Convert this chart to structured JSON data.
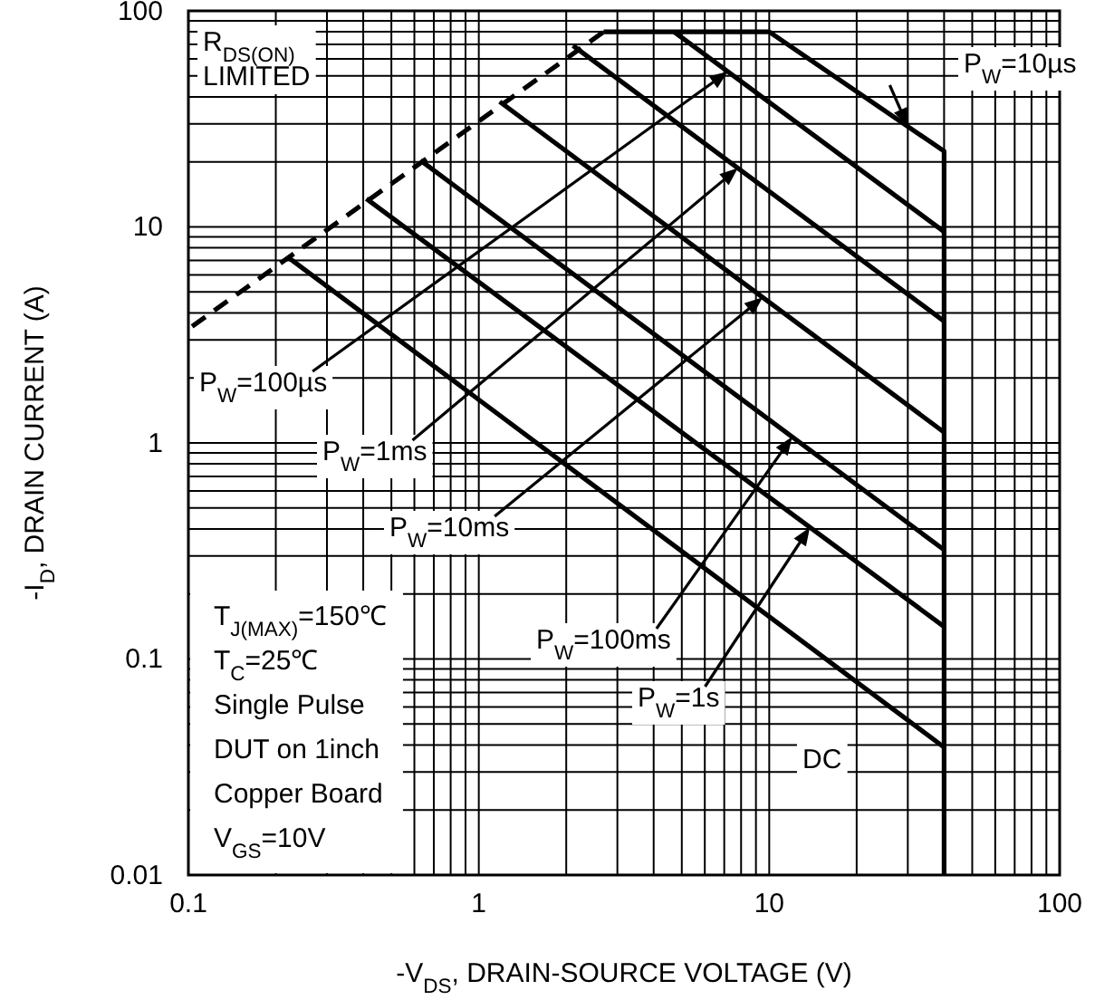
{
  "chart_data": {
    "type": "line",
    "xlabel": "-V$_{DS}$, DRAIN-SOURCE VOLTAGE (V)",
    "ylabel": "-I$_{D}$, DRAIN CURRENT (A)",
    "log": "xy",
    "grid": true,
    "xlim": [
      0.1,
      100
    ],
    "ylim": [
      0.01,
      100
    ],
    "xticks": [
      0.1,
      1,
      10,
      100
    ],
    "yticks": [
      0.01,
      0.1,
      1,
      10,
      100
    ],
    "series": [
      {
        "color": "#000000",
        "line_style": "dashed",
        "x": [
          0.103,
          2.69
        ],
        "values": [
          3.46,
          80
        ]
      },
      {
        "name": "P$_{W}$=10µs",
        "color": "#000000",
        "x": [
          2.69,
          10,
          40,
          40
        ],
        "values": [
          80,
          80,
          22.4,
          0.01
        ]
      },
      {
        "name": "P$_{W}$=100µs",
        "color": "#000000",
        "x": [
          4.7,
          40
        ],
        "values": [
          80,
          9.5
        ]
      },
      {
        "name": "P$_{W}$=1ms",
        "color": "#000000",
        "x": [
          2.11,
          40
        ],
        "values": [
          69,
          3.66
        ]
      },
      {
        "name": "P$_{W}$=10ms",
        "color": "#000000",
        "x": [
          1.18,
          40
        ],
        "values": [
          38,
          1.12
        ]
      },
      {
        "name": "P$_{W}$=100ms",
        "color": "#000000",
        "x": [
          0.63,
          40
        ],
        "values": [
          20.3,
          0.32
        ]
      },
      {
        "name": "P$_{W}$=1s",
        "color": "#000000",
        "x": [
          0.41,
          40
        ],
        "values": [
          13.5,
          0.141
        ]
      },
      {
        "name": "DC",
        "color": "#000000",
        "x": [
          0.22,
          40
        ],
        "values": [
          7.25,
          0.039
        ]
      }
    ],
    "annotations": [
      "R$_{DS(ON)}$ LIMITED",
      "T$_{J(MAX)}$=150℃",
      "T$_{C}$=25℃",
      "Single Pulse",
      "DUT on 1inch",
      "Copper Board",
      "V$_{GS}$=10V"
    ]
  }
}
